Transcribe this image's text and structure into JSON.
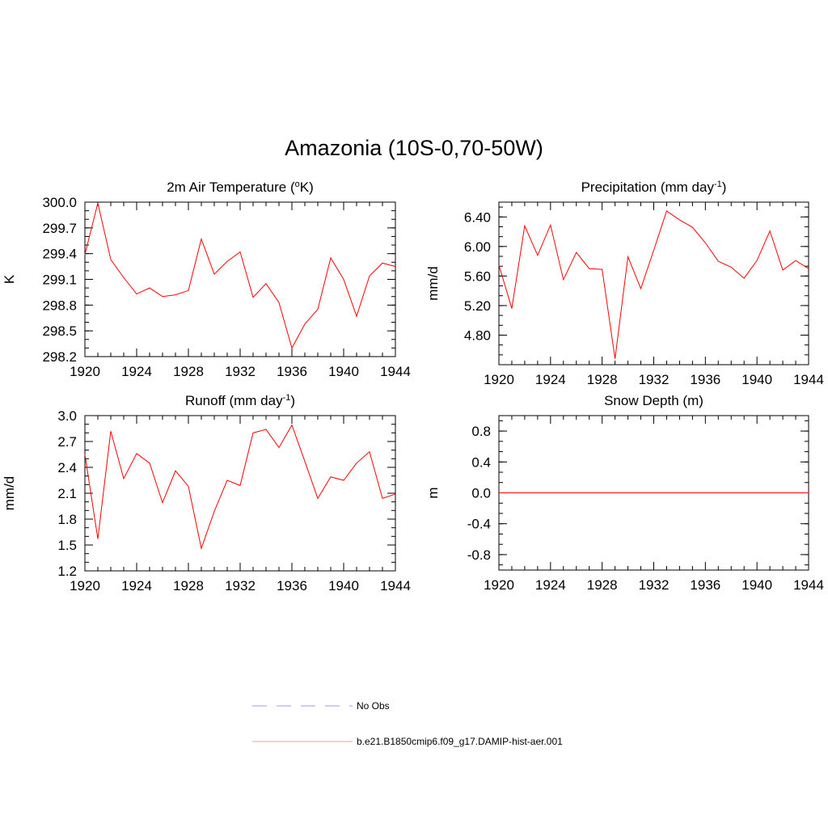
{
  "title": "Amazonia (10S-0,70-50W)",
  "chart_data": [
    {
      "type": "line",
      "title": "2m Air Temperature",
      "title_unit_prefix": "(",
      "title_unit_sup": "o",
      "title_unit_suffix": "K)",
      "xlabel": "",
      "ylabel": "K",
      "xlim": [
        1920,
        1944
      ],
      "ylim": [
        298.2,
        300.0
      ],
      "xticks": [
        "1920",
        "1924",
        "1928",
        "1932",
        "1936",
        "1940",
        "1944"
      ],
      "yticks": [
        "298.2",
        "298.5",
        "298.8",
        "299.1",
        "299.4",
        "299.7",
        "300.0"
      ],
      "series": [
        {
          "name": "b.e21.B1850cmip6.f09_g17.DAMIP-hist-aer.001",
          "color": "#ff0000",
          "x": [
            1920,
            1921,
            1922,
            1923,
            1924,
            1925,
            1926,
            1927,
            1928,
            1929,
            1930,
            1931,
            1932,
            1933,
            1934,
            1935,
            1936,
            1937,
            1938,
            1939,
            1940,
            1941,
            1942,
            1943,
            1944
          ],
          "y": [
            299.39,
            299.99,
            299.33,
            299.12,
            298.93,
            299.0,
            298.9,
            298.92,
            298.97,
            299.57,
            299.16,
            299.31,
            299.42,
            298.89,
            299.05,
            298.83,
            298.3,
            298.58,
            298.75,
            299.35,
            299.1,
            298.67,
            299.14,
            299.29,
            299.25
          ]
        }
      ]
    },
    {
      "type": "line",
      "title": "Precipitation",
      "title_unit_prefix": "(mm day",
      "title_unit_sup": "-1",
      "title_unit_suffix": ")",
      "xlabel": "",
      "ylabel": "mm/d",
      "xlim": [
        1920,
        1944
      ],
      "ylim": [
        4.4,
        6.6
      ],
      "xticks": [
        "1920",
        "1924",
        "1928",
        "1932",
        "1936",
        "1940",
        "1944"
      ],
      "yticks": [
        "4.80",
        "5.20",
        "5.60",
        "6.00",
        "6.40"
      ],
      "series": [
        {
          "name": "b.e21.B1850cmip6.f09_g17.DAMIP-hist-aer.001",
          "color": "#ff0000",
          "x": [
            1920,
            1921,
            1922,
            1923,
            1924,
            1925,
            1926,
            1927,
            1928,
            1929,
            1930,
            1931,
            1932,
            1933,
            1934,
            1935,
            1936,
            1937,
            1938,
            1939,
            1940,
            1941,
            1942,
            1943,
            1944
          ],
          "y": [
            5.75,
            5.16,
            6.28,
            5.88,
            6.29,
            5.55,
            5.92,
            5.7,
            5.69,
            4.48,
            5.86,
            5.43,
            5.95,
            6.48,
            6.36,
            6.26,
            6.05,
            5.8,
            5.72,
            5.57,
            5.81,
            6.21,
            5.68,
            5.81,
            5.7
          ]
        }
      ]
    },
    {
      "type": "line",
      "title": "Runoff",
      "title_unit_prefix": "(mm day",
      "title_unit_sup": "-1",
      "title_unit_suffix": ")",
      "xlabel": "",
      "ylabel": "mm/d",
      "xlim": [
        1920,
        1944
      ],
      "ylim": [
        1.2,
        3.0
      ],
      "xticks": [
        "1920",
        "1924",
        "1928",
        "1932",
        "1936",
        "1940",
        "1944"
      ],
      "yticks": [
        "1.2",
        "1.5",
        "1.8",
        "2.1",
        "2.4",
        "2.7",
        "3.0"
      ],
      "series": [
        {
          "name": "b.e21.B1850cmip6.f09_g17.DAMIP-hist-aer.001",
          "color": "#ff0000",
          "x": [
            1920,
            1921,
            1922,
            1923,
            1924,
            1925,
            1926,
            1927,
            1928,
            1929,
            1930,
            1931,
            1932,
            1933,
            1934,
            1935,
            1936,
            1937,
            1938,
            1939,
            1940,
            1941,
            1942,
            1943,
            1944
          ],
          "y": [
            2.55,
            1.57,
            2.82,
            2.27,
            2.56,
            2.45,
            1.99,
            2.36,
            2.18,
            1.46,
            1.89,
            2.25,
            2.19,
            2.8,
            2.84,
            2.63,
            2.89,
            2.47,
            2.04,
            2.29,
            2.25,
            2.45,
            2.58,
            2.04,
            2.09
          ]
        }
      ]
    },
    {
      "type": "line",
      "title": "Snow Depth",
      "title_unit_prefix": "(m)",
      "title_unit_sup": "",
      "title_unit_suffix": "",
      "xlabel": "",
      "ylabel": "m",
      "xlim": [
        1920,
        1944
      ],
      "ylim": [
        -1.0,
        1.0
      ],
      "xticks": [
        "1920",
        "1924",
        "1928",
        "1932",
        "1936",
        "1940",
        "1944"
      ],
      "yticks": [
        "-0.8",
        "-0.4",
        "0.0",
        "0.4",
        "0.8"
      ],
      "series": [
        {
          "name": "b.e21.B1850cmip6.f09_g17.DAMIP-hist-aer.001",
          "color": "#ff0000",
          "x": [
            1920,
            1944
          ],
          "y": [
            0.0,
            0.0
          ]
        }
      ]
    }
  ],
  "legend": {
    "items": [
      {
        "label": "No Obs",
        "color": "#9999ff",
        "style": "dashed"
      },
      {
        "label": "b.e21.B1850cmip6.f09_g17.DAMIP-hist-aer.001",
        "color": "#ff9999",
        "style": "solid"
      }
    ]
  }
}
